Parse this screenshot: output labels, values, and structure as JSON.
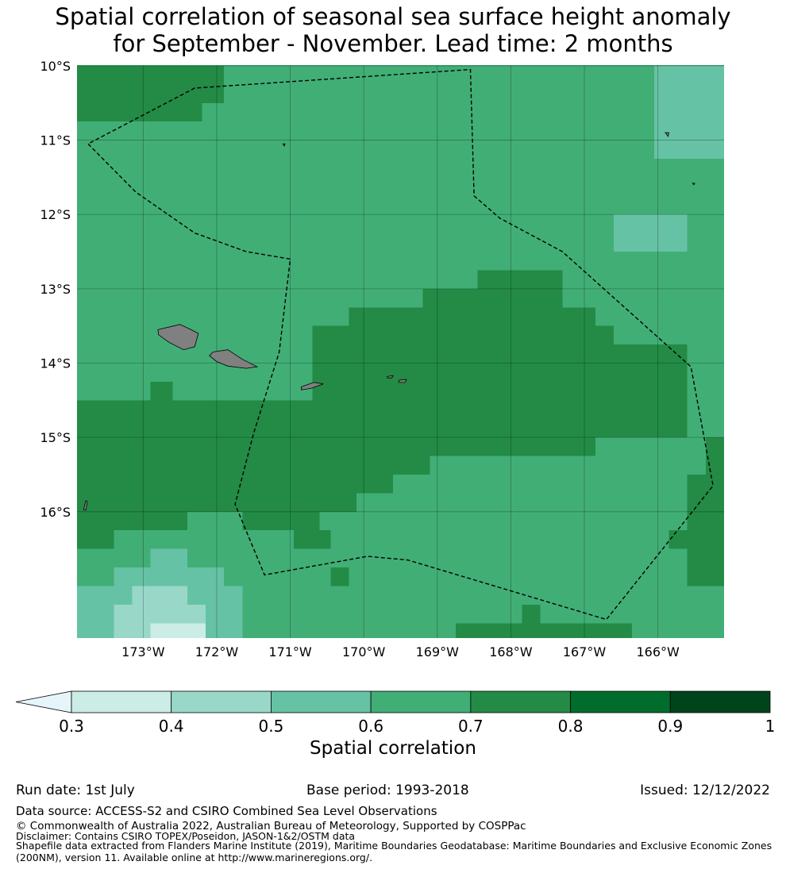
{
  "title": {
    "line1": "Spatial correlation of seasonal sea surface height anomaly",
    "line2": "for September - November. Lead time: 2 months"
  },
  "map": {
    "lon_range": [
      -173.9,
      -165.1
    ],
    "lat_range": [
      -17.7,
      -9.99
    ],
    "lon_ticks": [
      "173°W",
      "172°W",
      "171°W",
      "170°W",
      "169°W",
      "168°W",
      "167°W",
      "166°W"
    ],
    "lat_ticks": [
      "10°S",
      "11°S",
      "12°S",
      "13°S",
      "14°S",
      "15°S",
      "16°S"
    ],
    "grid": true,
    "land_color": "#808080",
    "base_level": 0.65,
    "base_color": "#41ae76",
    "regions": [
      {
        "level": 0.75,
        "lon": [
          -173.9,
          -172.2
        ],
        "lat": [
          -10.75,
          -10.0
        ]
      },
      {
        "level": 0.75,
        "lon": [
          -172.2,
          -171.9
        ],
        "lat": [
          -10.5,
          -10.0
        ]
      },
      {
        "level": 0.55,
        "lon": [
          -166.05,
          -165.1
        ],
        "lat": [
          -11.25,
          -10.0
        ]
      },
      {
        "level": 0.55,
        "lon": [
          -166.6,
          -165.6
        ],
        "lat": [
          -12.5,
          -12.0
        ]
      },
      {
        "level": 0.75,
        "lon": [
          -168.45,
          -167.3
        ],
        "lat": [
          -13.25,
          -12.75
        ]
      },
      {
        "level": 0.75,
        "lon": [
          -169.2,
          -167.3
        ],
        "lat": [
          -13.5,
          -13.0
        ]
      },
      {
        "level": 0.75,
        "lon": [
          -170.2,
          -166.85
        ],
        "lat": [
          -13.75,
          -13.25
        ]
      },
      {
        "level": 0.75,
        "lon": [
          -170.7,
          -166.6
        ],
        "lat": [
          -14.0,
          -13.5
        ]
      },
      {
        "level": 0.75,
        "lon": [
          -170.7,
          -165.6
        ],
        "lat": [
          -14.25,
          -13.75
        ]
      },
      {
        "level": 0.75,
        "lon": [
          -170.7,
          -165.6
        ],
        "lat": [
          -14.5,
          -14.0
        ]
      },
      {
        "level": 0.75,
        "lon": [
          -173.9,
          -165.6
        ],
        "lat": [
          -15.0,
          -14.5
        ]
      },
      {
        "level": 0.75,
        "lon": [
          -172.9,
          -172.6
        ],
        "lat": [
          -14.5,
          -14.25
        ]
      },
      {
        "level": 0.75,
        "lon": [
          -173.9,
          -166.85
        ],
        "lat": [
          -15.25,
          -14.75
        ]
      },
      {
        "level": 0.75,
        "lon": [
          -173.9,
          -169.1
        ],
        "lat": [
          -15.5,
          -15.0
        ]
      },
      {
        "level": 0.75,
        "lon": [
          -173.9,
          -169.6
        ],
        "lat": [
          -15.75,
          -15.25
        ]
      },
      {
        "level": 0.75,
        "lon": [
          -173.9,
          -170.1
        ],
        "lat": [
          -16.0,
          -15.5
        ]
      },
      {
        "level": 0.75,
        "lon": [
          -173.9,
          -172.4
        ],
        "lat": [
          -16.25,
          -15.75
        ]
      },
      {
        "level": 0.75,
        "lon": [
          -171.65,
          -170.6
        ],
        "lat": [
          -16.25,
          -16.0
        ]
      },
      {
        "level": 0.75,
        "lon": [
          -173.9,
          -173.4
        ],
        "lat": [
          -16.5,
          -16.0
        ]
      },
      {
        "level": 0.75,
        "lon": [
          -170.95,
          -170.45
        ],
        "lat": [
          -16.5,
          -16.25
        ]
      },
      {
        "level": 0.75,
        "lon": [
          -165.1,
          -165.35
        ],
        "lat": [
          -15.0,
          -15.5
        ]
      },
      {
        "level": 0.75,
        "lon": [
          -165.6,
          -165.1
        ],
        "lat": [
          -16.5,
          -15.5
        ]
      },
      {
        "level": 0.75,
        "lon": [
          -165.85,
          -165.1
        ],
        "lat": [
          -16.5,
          -16.25
        ]
      },
      {
        "level": 0.75,
        "lon": [
          -165.6,
          -165.1
        ],
        "lat": [
          -17.0,
          -16.25
        ]
      },
      {
        "level": 0.75,
        "lon": [
          -170.45,
          -170.2
        ],
        "lat": [
          -17.0,
          -16.75
        ]
      },
      {
        "level": 0.75,
        "lon": [
          -167.85,
          -167.6
        ],
        "lat": [
          -17.5,
          -17.25
        ]
      },
      {
        "level": 0.75,
        "lon": [
          -168.75,
          -166.35
        ],
        "lat": [
          -17.7,
          -17.5
        ]
      },
      {
        "level": 0.55,
        "lon": [
          -173.9,
          -172.9
        ],
        "lat": [
          -17.75,
          -17.0
        ]
      },
      {
        "level": 0.55,
        "lon": [
          -173.4,
          -171.9
        ],
        "lat": [
          -17.0,
          -16.75
        ]
      },
      {
        "level": 0.55,
        "lon": [
          -172.9,
          -172.4
        ],
        "lat": [
          -16.75,
          -16.5
        ]
      },
      {
        "level": 0.55,
        "lon": [
          -172.9,
          -171.65
        ],
        "lat": [
          -17.25,
          -17.0
        ]
      },
      {
        "level": 0.55,
        "lon": [
          -173.4,
          -171.65
        ],
        "lat": [
          -17.7,
          -17.25
        ]
      },
      {
        "level": 0.45,
        "lon": [
          -173.15,
          -172.4
        ],
        "lat": [
          -17.5,
          -17.0
        ]
      },
      {
        "level": 0.45,
        "lon": [
          -173.4,
          -172.15
        ],
        "lat": [
          -17.7,
          -17.25
        ]
      },
      {
        "level": 0.35,
        "lon": [
          -172.9,
          -172.15
        ],
        "lat": [
          -17.7,
          -17.5
        ]
      }
    ],
    "eez_boundary": [
      [
        -173.75,
        -11.05
      ],
      [
        -173.1,
        -11.7
      ],
      [
        -172.3,
        -12.25
      ],
      [
        -171.6,
        -12.5
      ],
      [
        -171.0,
        -12.6
      ],
      [
        -171.15,
        -13.85
      ],
      [
        -171.5,
        -14.95
      ],
      [
        -171.75,
        -15.9
      ],
      [
        -171.35,
        -16.85
      ],
      [
        -169.95,
        -16.6
      ],
      [
        -169.4,
        -16.65
      ],
      [
        -166.7,
        -17.45
      ],
      [
        -165.25,
        -15.65
      ],
      [
        -165.55,
        -14.05
      ],
      [
        -167.3,
        -12.5
      ],
      [
        -168.15,
        -12.05
      ],
      [
        -168.5,
        -11.75
      ],
      [
        -168.55,
        -10.05
      ],
      [
        -172.3,
        -10.3
      ],
      [
        -173.75,
        -11.05
      ]
    ],
    "islands": [
      {
        "name": "upolu",
        "poly": [
          [
            -172.8,
            -13.55
          ],
          [
            -172.5,
            -13.48
          ],
          [
            -172.35,
            -13.55
          ],
          [
            -172.25,
            -13.6
          ],
          [
            -172.3,
            -13.78
          ],
          [
            -172.45,
            -13.82
          ],
          [
            -172.65,
            -13.72
          ],
          [
            -172.79,
            -13.62
          ]
        ]
      },
      {
        "name": "savaii",
        "poly": [
          [
            -172.05,
            -13.85
          ],
          [
            -171.85,
            -13.82
          ],
          [
            -171.65,
            -13.95
          ],
          [
            -171.45,
            -14.05
          ],
          [
            -171.6,
            -14.07
          ],
          [
            -171.85,
            -14.04
          ],
          [
            -172.0,
            -13.98
          ],
          [
            -172.1,
            -13.9
          ]
        ]
      },
      {
        "name": "tutuila",
        "poly": [
          [
            -170.85,
            -14.32
          ],
          [
            -170.68,
            -14.26
          ],
          [
            -170.55,
            -14.28
          ],
          [
            -170.72,
            -14.34
          ],
          [
            -170.85,
            -14.36
          ]
        ]
      },
      {
        "name": "ofu",
        "poly": [
          [
            -169.68,
            -14.18
          ],
          [
            -169.6,
            -14.17
          ],
          [
            -169.62,
            -14.2
          ],
          [
            -169.68,
            -14.2
          ]
        ]
      },
      {
        "name": "tau",
        "poly": [
          [
            -169.52,
            -14.23
          ],
          [
            -169.42,
            -14.22
          ],
          [
            -169.44,
            -14.26
          ],
          [
            -169.52,
            -14.26
          ]
        ]
      },
      {
        "name": "swains",
        "poly": [
          [
            -171.1,
            -11.05
          ],
          [
            -171.07,
            -11.05
          ],
          [
            -171.08,
            -11.08
          ]
        ]
      },
      {
        "name": "rose",
        "poly": [
          [
            -165.9,
            -10.9
          ],
          [
            -165.85,
            -10.9
          ],
          [
            -165.86,
            -10.95
          ]
        ]
      },
      {
        "name": "dot2",
        "poly": [
          [
            -165.53,
            -11.58
          ],
          [
            -165.5,
            -11.58
          ],
          [
            -165.51,
            -11.6
          ]
        ]
      },
      {
        "name": "dot3",
        "poly": [
          [
            -173.78,
            -15.85
          ],
          [
            -173.76,
            -15.86
          ],
          [
            -173.78,
            -15.98
          ],
          [
            -173.81,
            -15.97
          ]
        ]
      }
    ]
  },
  "colorbar": {
    "ticks": [
      "0.3",
      "0.4",
      "0.5",
      "0.6",
      "0.7",
      "0.8",
      "0.9",
      "1"
    ],
    "bins": [
      {
        "lo": 0.3,
        "hi": 0.4,
        "color": "#ccece6"
      },
      {
        "lo": 0.4,
        "hi": 0.5,
        "color": "#99d8c9"
      },
      {
        "lo": 0.5,
        "hi": 0.6,
        "color": "#66c2a4"
      },
      {
        "lo": 0.6,
        "hi": 0.7,
        "color": "#41ae76"
      },
      {
        "lo": 0.7,
        "hi": 0.8,
        "color": "#238b45"
      },
      {
        "lo": 0.8,
        "hi": 0.9,
        "color": "#006d2c"
      },
      {
        "lo": 0.9,
        "hi": 1.0,
        "color": "#00441b"
      }
    ],
    "under_color": "#e5f5f9",
    "label": "Spatial correlation"
  },
  "footer": {
    "run_date": "Run date: 1st July",
    "base_period": "Base period: 1993-2018",
    "issued": "Issued: 12/12/2022",
    "data_source": "Data source: ACCESS-S2 and CSIRO Combined Sea Level Observations",
    "copyright": "© Commonwealth of Australia 2022, Australian Bureau of Meteorology, Supported by COSPPac",
    "disclaimer": "Disclaimer: Contains CSIRO TOPEX/Poseidon, JASON-1&2/OSTM data",
    "shapefile1": "Shapefile data extracted from Flanders Marine Institute (2019), Maritime Boundaries Geodatabase: Maritime Boundaries and Exclusive Economic Zones",
    "shapefile2": "(200NM), version 11. Available online at http://www.marineregions.org/."
  }
}
